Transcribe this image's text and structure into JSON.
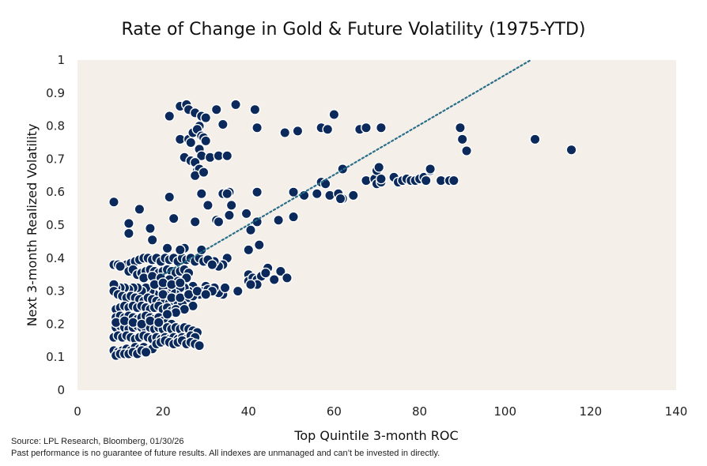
{
  "chart_data": {
    "type": "scatter",
    "title": "Rate of Change in Gold & Future Volatility (1975-YTD)",
    "xlabel": "Top Quintile 3-month ROC",
    "ylabel": "Next 3-month Realized Volatility",
    "xlim": [
      0,
      140
    ],
    "ylim": [
      0,
      1
    ],
    "xticks": [
      "0",
      "20",
      "40",
      "60",
      "80",
      "100",
      "120",
      "140"
    ],
    "yticks": [
      "0",
      "0.1",
      "0.2",
      "0.3",
      "0.4",
      "0.5",
      "0.6",
      "0.7",
      "0.8",
      "0.9",
      "1"
    ],
    "plot_background": "#f5efe9",
    "marker_color": "#0b2a5b",
    "trendline_color": "#2a6f8a",
    "trendline": {
      "x": [
        20,
        106
      ],
      "y": [
        0.35,
        1.0
      ]
    },
    "points": [
      [
        8.5,
        0.57
      ],
      [
        12,
        0.505
      ],
      [
        12,
        0.475
      ],
      [
        14.5,
        0.548
      ],
      [
        17,
        0.49
      ],
      [
        17.5,
        0.455
      ],
      [
        21.5,
        0.585
      ],
      [
        22.5,
        0.52
      ],
      [
        21.5,
        0.83
      ],
      [
        24,
        0.86
      ],
      [
        25.5,
        0.865
      ],
      [
        26,
        0.85
      ],
      [
        27.5,
        0.84
      ],
      [
        28.5,
        0.8
      ],
      [
        29,
        0.83
      ],
      [
        30,
        0.825
      ],
      [
        32.5,
        0.85
      ],
      [
        34,
        0.805
      ],
      [
        37,
        0.865
      ],
      [
        41.5,
        0.85
      ],
      [
        42,
        0.795
      ],
      [
        24,
        0.76
      ],
      [
        25,
        0.705
      ],
      [
        26,
        0.76
      ],
      [
        26.5,
        0.75
      ],
      [
        27,
        0.78
      ],
      [
        28,
        0.79
      ],
      [
        28.5,
        0.73
      ],
      [
        29,
        0.71
      ],
      [
        29,
        0.77
      ],
      [
        29.5,
        0.765
      ],
      [
        30,
        0.755
      ],
      [
        31,
        0.705
      ],
      [
        26.5,
        0.695
      ],
      [
        27.5,
        0.69
      ],
      [
        28,
        0.665
      ],
      [
        28.5,
        0.67
      ],
      [
        27.5,
        0.65
      ],
      [
        29.5,
        0.66
      ],
      [
        33,
        0.71
      ],
      [
        35,
        0.71
      ],
      [
        29,
        0.595
      ],
      [
        30.5,
        0.56
      ],
      [
        34,
        0.595
      ],
      [
        35,
        0.595
      ],
      [
        35.5,
        0.6
      ],
      [
        36,
        0.56
      ],
      [
        35.5,
        0.53
      ],
      [
        35,
        0.595
      ],
      [
        42,
        0.6
      ],
      [
        27.5,
        0.51
      ],
      [
        32.5,
        0.515
      ],
      [
        33,
        0.51
      ],
      [
        39.5,
        0.535
      ],
      [
        42,
        0.51
      ],
      [
        40.5,
        0.485
      ],
      [
        42.5,
        0.44
      ],
      [
        40,
        0.425
      ],
      [
        47,
        0.515
      ],
      [
        50.5,
        0.525
      ],
      [
        50.5,
        0.6
      ],
      [
        53,
        0.59
      ],
      [
        56,
        0.595
      ],
      [
        57,
        0.63
      ],
      [
        58,
        0.625
      ],
      [
        59,
        0.59
      ],
      [
        61,
        0.595
      ],
      [
        62,
        0.58
      ],
      [
        61.5,
        0.58
      ],
      [
        62,
        0.67
      ],
      [
        64.5,
        0.59
      ],
      [
        67.5,
        0.635
      ],
      [
        69.5,
        0.64
      ],
      [
        70,
        0.625
      ],
      [
        70,
        0.665
      ],
      [
        70.5,
        0.675
      ],
      [
        71,
        0.63
      ],
      [
        71,
        0.64
      ],
      [
        74,
        0.645
      ],
      [
        75,
        0.63
      ],
      [
        76,
        0.635
      ],
      [
        77,
        0.64
      ],
      [
        78,
        0.635
      ],
      [
        79,
        0.635
      ],
      [
        80,
        0.64
      ],
      [
        81,
        0.645
      ],
      [
        82.5,
        0.665
      ],
      [
        82.5,
        0.67
      ],
      [
        81.5,
        0.635
      ],
      [
        85,
        0.635
      ],
      [
        87,
        0.635
      ],
      [
        88,
        0.635
      ],
      [
        48.5,
        0.78
      ],
      [
        51.5,
        0.785
      ],
      [
        57,
        0.795
      ],
      [
        58.5,
        0.79
      ],
      [
        60,
        0.835
      ],
      [
        66,
        0.79
      ],
      [
        67.5,
        0.795
      ],
      [
        71,
        0.795
      ],
      [
        89.5,
        0.795
      ],
      [
        90,
        0.76
      ],
      [
        91,
        0.725
      ],
      [
        107,
        0.76
      ],
      [
        115.5,
        0.728
      ],
      [
        44.5,
        0.37
      ],
      [
        40,
        0.35
      ],
      [
        40,
        0.33
      ],
      [
        41,
        0.34
      ],
      [
        42,
        0.335
      ],
      [
        43,
        0.345
      ],
      [
        44,
        0.355
      ],
      [
        42,
        0.32
      ],
      [
        40.5,
        0.32
      ],
      [
        46,
        0.335
      ],
      [
        47.5,
        0.36
      ],
      [
        49,
        0.34
      ],
      [
        37.5,
        0.3
      ],
      [
        35,
        0.4
      ],
      [
        34,
        0.38
      ],
      [
        33,
        0.375
      ],
      [
        32,
        0.39
      ],
      [
        34,
        0.29
      ],
      [
        33,
        0.295
      ],
      [
        34.5,
        0.31
      ],
      [
        32,
        0.31
      ],
      [
        30,
        0.315
      ],
      [
        28.5,
        0.29
      ],
      [
        29.5,
        0.3
      ],
      [
        30.5,
        0.305
      ],
      [
        31.5,
        0.3
      ],
      [
        27,
        0.315
      ],
      [
        26,
        0.3
      ],
      [
        25,
        0.31
      ],
      [
        24,
        0.31
      ],
      [
        25,
        0.275
      ],
      [
        26,
        0.28
      ],
      [
        27,
        0.285
      ],
      [
        23,
        0.29
      ],
      [
        22,
        0.3
      ],
      [
        21,
        0.31
      ],
      [
        20,
        0.31
      ],
      [
        20.5,
        0.29
      ],
      [
        19.5,
        0.28
      ],
      [
        18,
        0.29
      ],
      [
        17,
        0.3
      ],
      [
        16,
        0.31
      ],
      [
        15,
        0.3
      ],
      [
        14,
        0.31
      ],
      [
        13,
        0.31
      ],
      [
        12,
        0.305
      ],
      [
        11,
        0.31
      ],
      [
        10,
        0.31
      ],
      [
        9,
        0.31
      ],
      [
        8.5,
        0.32
      ],
      [
        8.5,
        0.3
      ],
      [
        9.5,
        0.29
      ],
      [
        10.5,
        0.285
      ],
      [
        11.5,
        0.28
      ],
      [
        12.5,
        0.285
      ],
      [
        13.5,
        0.28
      ],
      [
        14.5,
        0.275
      ],
      [
        15.5,
        0.27
      ],
      [
        16.5,
        0.28
      ],
      [
        17.5,
        0.275
      ],
      [
        18.5,
        0.27
      ],
      [
        19.5,
        0.265
      ],
      [
        20.5,
        0.27
      ],
      [
        21.5,
        0.265
      ],
      [
        22.5,
        0.27
      ],
      [
        23.5,
        0.265
      ],
      [
        24.5,
        0.26
      ],
      [
        8.5,
        0.38
      ],
      [
        9.5,
        0.38
      ],
      [
        10.5,
        0.375
      ],
      [
        11.5,
        0.38
      ],
      [
        12.5,
        0.385
      ],
      [
        13.5,
        0.39
      ],
      [
        14.5,
        0.395
      ],
      [
        15.5,
        0.4
      ],
      [
        16.5,
        0.4
      ],
      [
        17.5,
        0.395
      ],
      [
        18.5,
        0.4
      ],
      [
        19.5,
        0.39
      ],
      [
        20.5,
        0.4
      ],
      [
        21.5,
        0.395
      ],
      [
        22.5,
        0.4
      ],
      [
        23.5,
        0.39
      ],
      [
        24.5,
        0.4
      ],
      [
        25.5,
        0.395
      ],
      [
        26.5,
        0.4
      ],
      [
        27.5,
        0.39
      ],
      [
        28.5,
        0.4
      ],
      [
        29.5,
        0.39
      ],
      [
        30.5,
        0.395
      ],
      [
        31.5,
        0.38
      ],
      [
        29,
        0.425
      ],
      [
        25,
        0.43
      ],
      [
        24,
        0.425
      ],
      [
        21,
        0.43
      ],
      [
        10,
        0.375
      ],
      [
        12,
        0.36
      ],
      [
        13,
        0.365
      ],
      [
        14,
        0.35
      ],
      [
        15,
        0.355
      ],
      [
        16,
        0.36
      ],
      [
        17,
        0.365
      ],
      [
        18,
        0.36
      ],
      [
        19,
        0.355
      ],
      [
        20,
        0.36
      ],
      [
        21,
        0.365
      ],
      [
        22,
        0.36
      ],
      [
        23,
        0.355
      ],
      [
        24,
        0.36
      ],
      [
        25,
        0.365
      ],
      [
        26,
        0.355
      ],
      [
        15.5,
        0.34
      ],
      [
        17.5,
        0.345
      ],
      [
        19.5,
        0.34
      ],
      [
        21.5,
        0.335
      ],
      [
        23.5,
        0.33
      ],
      [
        25.5,
        0.34
      ],
      [
        18,
        0.32
      ],
      [
        20,
        0.325
      ],
      [
        22,
        0.32
      ],
      [
        24,
        0.325
      ],
      [
        9,
        0.245
      ],
      [
        10,
        0.25
      ],
      [
        11,
        0.255
      ],
      [
        12,
        0.25
      ],
      [
        13,
        0.255
      ],
      [
        14,
        0.25
      ],
      [
        15,
        0.255
      ],
      [
        16,
        0.25
      ],
      [
        17,
        0.245
      ],
      [
        18,
        0.25
      ],
      [
        19,
        0.255
      ],
      [
        20,
        0.245
      ],
      [
        21,
        0.25
      ],
      [
        22,
        0.24
      ],
      [
        23,
        0.245
      ],
      [
        9,
        0.22
      ],
      [
        10,
        0.225
      ],
      [
        11,
        0.22
      ],
      [
        12,
        0.225
      ],
      [
        13,
        0.22
      ],
      [
        14,
        0.215
      ],
      [
        15,
        0.22
      ],
      [
        16,
        0.225
      ],
      [
        17,
        0.22
      ],
      [
        18,
        0.215
      ],
      [
        19,
        0.22
      ],
      [
        20,
        0.21
      ],
      [
        21,
        0.205
      ],
      [
        22,
        0.2
      ],
      [
        9,
        0.19
      ],
      [
        10,
        0.195
      ],
      [
        11,
        0.19
      ],
      [
        12,
        0.185
      ],
      [
        13,
        0.19
      ],
      [
        14,
        0.195
      ],
      [
        15,
        0.19
      ],
      [
        16,
        0.185
      ],
      [
        17,
        0.19
      ],
      [
        18,
        0.185
      ],
      [
        19,
        0.19
      ],
      [
        20,
        0.185
      ],
      [
        21,
        0.19
      ],
      [
        22,
        0.185
      ],
      [
        23,
        0.19
      ],
      [
        24,
        0.185
      ],
      [
        25,
        0.19
      ],
      [
        26,
        0.185
      ],
      [
        27,
        0.18
      ],
      [
        28,
        0.175
      ],
      [
        8.5,
        0.16
      ],
      [
        9.5,
        0.165
      ],
      [
        10.5,
        0.16
      ],
      [
        11.5,
        0.165
      ],
      [
        12.5,
        0.16
      ],
      [
        13.5,
        0.155
      ],
      [
        14.5,
        0.16
      ],
      [
        15.5,
        0.165
      ],
      [
        16.5,
        0.16
      ],
      [
        17.5,
        0.155
      ],
      [
        18.5,
        0.16
      ],
      [
        19.5,
        0.155
      ],
      [
        20.5,
        0.16
      ],
      [
        21.5,
        0.155
      ],
      [
        22.5,
        0.16
      ],
      [
        23.5,
        0.155
      ],
      [
        24.5,
        0.16
      ],
      [
        25.5,
        0.155
      ],
      [
        26.5,
        0.165
      ],
      [
        27.5,
        0.16
      ],
      [
        8.5,
        0.12
      ],
      [
        9.5,
        0.115
      ],
      [
        10.5,
        0.12
      ],
      [
        11.5,
        0.125
      ],
      [
        12.5,
        0.12
      ],
      [
        13.5,
        0.13
      ],
      [
        14.5,
        0.125
      ],
      [
        15.5,
        0.13
      ],
      [
        16.5,
        0.12
      ],
      [
        17.5,
        0.125
      ],
      [
        18.5,
        0.14
      ],
      [
        19.5,
        0.145
      ],
      [
        20.5,
        0.15
      ],
      [
        21.5,
        0.145
      ],
      [
        22.5,
        0.14
      ],
      [
        23.5,
        0.145
      ],
      [
        24.5,
        0.15
      ],
      [
        25.5,
        0.14
      ],
      [
        26.5,
        0.145
      ],
      [
        27.5,
        0.14
      ],
      [
        28.5,
        0.135
      ],
      [
        9,
        0.105
      ],
      [
        10,
        0.11
      ],
      [
        11,
        0.11
      ],
      [
        12,
        0.11
      ],
      [
        13,
        0.115
      ],
      [
        14,
        0.11
      ],
      [
        15,
        0.12
      ],
      [
        16,
        0.115
      ],
      [
        20,
        0.29
      ],
      [
        22,
        0.28
      ],
      [
        24,
        0.28
      ],
      [
        26,
        0.29
      ],
      [
        28,
        0.3
      ],
      [
        30,
        0.29
      ],
      [
        27,
        0.255
      ],
      [
        25,
        0.245
      ],
      [
        23,
        0.235
      ],
      [
        21,
        0.23
      ],
      [
        9,
        0.205
      ],
      [
        11,
        0.21
      ],
      [
        13,
        0.205
      ],
      [
        15,
        0.2
      ],
      [
        17,
        0.21
      ],
      [
        19,
        0.205
      ]
    ]
  },
  "footer": {
    "source": "Source: LPL Research, Bloomberg, 01/30/26",
    "disclaimer": "Past performance is no guarantee of future results. All indexes are unmanaged and can’t be invested in directly."
  }
}
